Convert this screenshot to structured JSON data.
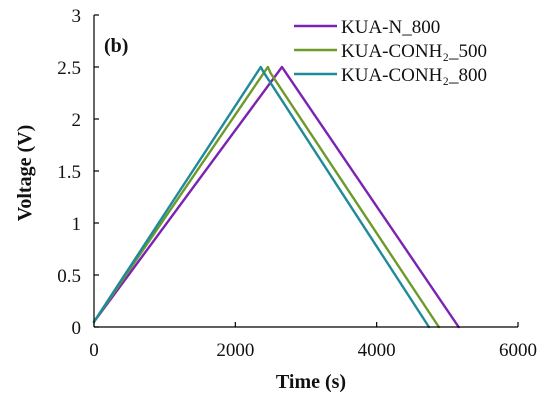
{
  "chart_data": {
    "type": "line",
    "panel_label": "(b)",
    "xlabel": "Time (s)",
    "ylabel": "Voltage (V)",
    "xlim": [
      0,
      6000
    ],
    "ylim": [
      0,
      3
    ],
    "x_ticks": [
      0,
      2000,
      4000,
      6000
    ],
    "y_ticks": [
      0,
      0.5,
      1,
      1.5,
      2,
      2.5,
      3
    ],
    "x_tick_labels": [
      "0",
      "2000",
      "4000",
      "6000"
    ],
    "y_tick_labels": [
      "0",
      "0.5",
      "1",
      "1.5",
      "2",
      "2.5",
      "3"
    ],
    "grid": false,
    "legend_position": "top-right",
    "series": [
      {
        "name": "KUA-N_800",
        "color": "#7B22B3",
        "x": [
          0,
          2660,
          2700,
          5160
        ],
        "y": [
          0.05,
          2.5,
          2.46,
          0
        ]
      },
      {
        "name": "KUA-CONH₂_500",
        "color": "#6E9A2B",
        "x": [
          0,
          2460,
          2500,
          4880
        ],
        "y": [
          0.05,
          2.5,
          2.44,
          0
        ]
      },
      {
        "name": "KUA-CONH₂_800",
        "color": "#1F8A98",
        "x": [
          0,
          2360,
          2400,
          4740
        ],
        "y": [
          0.05,
          2.5,
          2.45,
          0
        ]
      }
    ]
  }
}
